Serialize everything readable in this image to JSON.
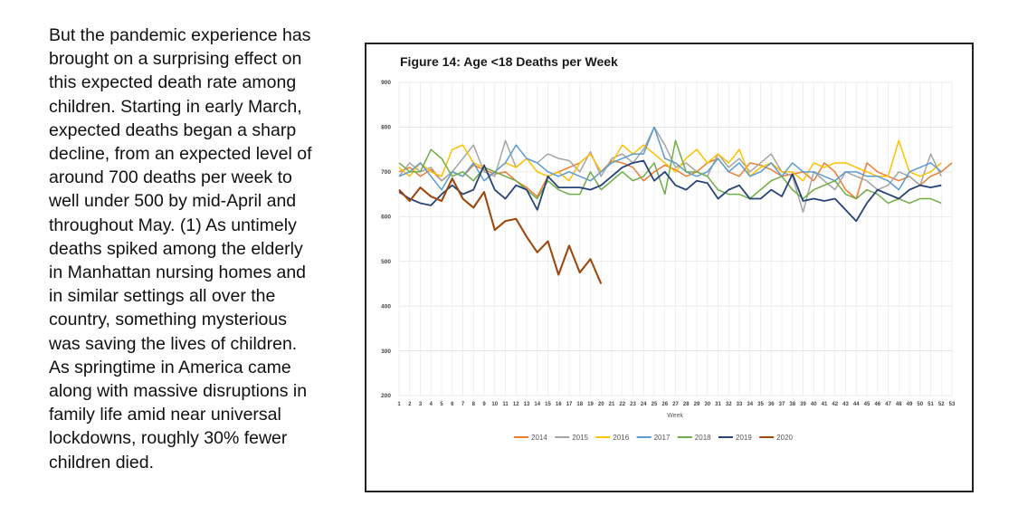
{
  "paragraph": {
    "lines": [
      "But the pandemic experience has",
      "brought on a surprising effect on",
      "this expected death rate among",
      "children. Starting in early March,",
      "expected deaths began a sharp",
      "decline, from an expected level of",
      "around 700 deaths per week to",
      "well under 500 by mid-April and",
      "throughout May. (1)  As untimely",
      "deaths spiked among the elderly",
      "in Manhattan nursing homes and",
      "in similar settings all over the",
      "country, something mysterious",
      "was saving the lives of children.",
      "As springtime in America came",
      "along with massive disruptions in",
      "family life amid near universal",
      "lockdowns, roughly 30% fewer",
      "children died."
    ]
  },
  "chart_data": {
    "type": "line",
    "title": "Figure 14: Age <18 Deaths per Week",
    "xlabel": "Week",
    "ylabel": "",
    "ylim": [
      200,
      900
    ],
    "yticks": [
      200,
      300,
      400,
      500,
      600,
      700,
      800,
      900
    ],
    "categories": [
      "1",
      "2",
      "3",
      "4",
      "5",
      "6",
      "7",
      "8",
      "9",
      "10",
      "11",
      "12",
      "13",
      "14",
      "15",
      "16",
      "17",
      "18",
      "19",
      "20",
      "21",
      "22",
      "23",
      "24",
      "25",
      "26",
      "27",
      "28",
      "29",
      "30",
      "31",
      "32",
      "33",
      "34",
      "35",
      "36",
      "37",
      "38",
      "39",
      "40",
      "41",
      "42",
      "43",
      "44",
      "45",
      "46",
      "47",
      "48",
      "49",
      "50",
      "51",
      "52",
      "53"
    ],
    "legend_position": "bottom",
    "grid": true,
    "series": [
      {
        "name": "2014",
        "color": "#ed7d31",
        "values": [
          700,
          710,
          690,
          705,
          680,
          700,
          690,
          715,
          705,
          695,
          700,
          680,
          665,
          645,
          690,
          700,
          710,
          720,
          740,
          700,
          725,
          720,
          710,
          680,
          700,
          715,
          705,
          690,
          700,
          720,
          730,
          700,
          690,
          720,
          715,
          705,
          690,
          695,
          700,
          680,
          720,
          700,
          660,
          640,
          720,
          700,
          690,
          680,
          690,
          670,
          690,
          700,
          720
        ]
      },
      {
        "name": "2015",
        "color": "#a5a5a5",
        "values": [
          690,
          720,
          700,
          710,
          680,
          700,
          730,
          760,
          700,
          690,
          770,
          710,
          730,
          720,
          740,
          730,
          725,
          700,
          745,
          690,
          730,
          740,
          720,
          750,
          800,
          760,
          710,
          720,
          700,
          690,
          740,
          710,
          730,
          700,
          720,
          740,
          700,
          690,
          610,
          700,
          680,
          660,
          700,
          690,
          680,
          660,
          670,
          700,
          690,
          670,
          740,
          690,
          null
        ]
      },
      {
        "name": "2016",
        "color": "#ffc000",
        "values": [
          710,
          690,
          720,
          700,
          690,
          750,
          760,
          720,
          710,
          700,
          720,
          710,
          730,
          700,
          690,
          700,
          680,
          720,
          740,
          700,
          720,
          760,
          740,
          760,
          740,
          720,
          700,
          730,
          750,
          720,
          740,
          720,
          750,
          690,
          710,
          720,
          700,
          700,
          680,
          720,
          710,
          720,
          720,
          710,
          700,
          690,
          690,
          770,
          700,
          690,
          700,
          720,
          null
        ]
      },
      {
        "name": "2017",
        "color": "#5b9bd5",
        "values": [
          690,
          700,
          720,
          690,
          660,
          700,
          690,
          720,
          680,
          700,
          720,
          760,
          730,
          720,
          700,
          690,
          700,
          690,
          680,
          700,
          720,
          730,
          740,
          740,
          800,
          730,
          720,
          700,
          690,
          700,
          730,
          700,
          720,
          690,
          700,
          720,
          690,
          720,
          700,
          700,
          690,
          680,
          700,
          700,
          690,
          690,
          680,
          660,
          700,
          710,
          720,
          700,
          null
        ]
      },
      {
        "name": "2018",
        "color": "#70ad47",
        "values": [
          720,
          700,
          700,
          750,
          730,
          690,
          700,
          680,
          710,
          700,
          690,
          680,
          660,
          640,
          680,
          660,
          650,
          650,
          700,
          660,
          680,
          700,
          680,
          690,
          720,
          650,
          770,
          700,
          700,
          690,
          660,
          650,
          650,
          640,
          660,
          680,
          690,
          660,
          640,
          660,
          670,
          680,
          650,
          640,
          660,
          650,
          630,
          640,
          630,
          640,
          640,
          630,
          null
        ]
      },
      {
        "name": "2019",
        "color": "#264478",
        "values": [
          655,
          640,
          630,
          625,
          650,
          670,
          650,
          660,
          715,
          660,
          640,
          670,
          660,
          615,
          690,
          665,
          665,
          665,
          660,
          670,
          690,
          710,
          720,
          725,
          680,
          700,
          670,
          660,
          680,
          675,
          640,
          660,
          670,
          640,
          640,
          660,
          645,
          695,
          635,
          640,
          635,
          640,
          615,
          590,
          630,
          660,
          650,
          640,
          660,
          670,
          665,
          670,
          null
        ]
      },
      {
        "name": "2020",
        "color": "#9e480e",
        "values": [
          660,
          635,
          665,
          645,
          635,
          685,
          640,
          620,
          655,
          570,
          590,
          595,
          555,
          520,
          545,
          470,
          535,
          475,
          505,
          450,
          null,
          null,
          null,
          null,
          null,
          null,
          null,
          null,
          null,
          null,
          null,
          null,
          null,
          null,
          null,
          null,
          null,
          null,
          null,
          null,
          null,
          null,
          null,
          null,
          null,
          null,
          null,
          null,
          null,
          null,
          null,
          null,
          null
        ]
      }
    ]
  }
}
